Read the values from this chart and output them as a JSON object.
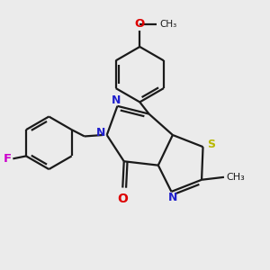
{
  "bg_color": "#ebebeb",
  "bond_color": "#1a1a1a",
  "n_color": "#2020cc",
  "o_color": "#dd0000",
  "s_color": "#b8b800",
  "f_color": "#cc00cc",
  "line_width": 1.6,
  "figsize": [
    3.0,
    3.0
  ],
  "dpi": 100,
  "xlim": [
    0,
    10
  ],
  "ylim": [
    0,
    10
  ]
}
